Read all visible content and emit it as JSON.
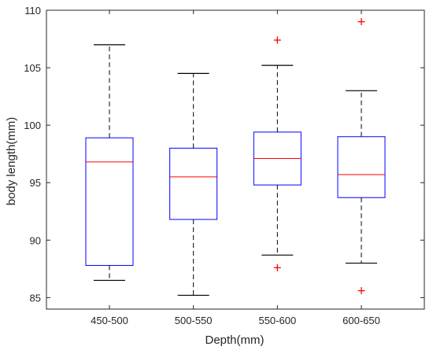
{
  "chart_data": {
    "type": "box",
    "xlabel": "Depth(mm)",
    "ylabel": "body length(mm)",
    "ylim": [
      84,
      110
    ],
    "yticks": [
      85,
      90,
      95,
      100,
      105,
      110
    ],
    "categories": [
      "450-500",
      "500-550",
      "550-600",
      "600-650"
    ],
    "boxes": [
      {
        "category": "450-500",
        "whisker_low": 86.5,
        "q1": 87.8,
        "median": 96.8,
        "q3": 98.9,
        "whisker_high": 107.0,
        "outliers": []
      },
      {
        "category": "500-550",
        "whisker_low": 85.2,
        "q1": 91.8,
        "median": 95.5,
        "q3": 98.0,
        "whisker_high": 104.5,
        "outliers": []
      },
      {
        "category": "550-600",
        "whisker_low": 88.7,
        "q1": 94.8,
        "median": 97.1,
        "q3": 99.4,
        "whisker_high": 105.2,
        "outliers": [
          87.6,
          107.4
        ]
      },
      {
        "category": "600-650",
        "whisker_low": 88.0,
        "q1": 93.7,
        "median": 95.7,
        "q3": 99.0,
        "whisker_high": 103.0,
        "outliers": [
          85.6,
          109.0
        ]
      }
    ],
    "grid": false,
    "colors": {
      "box": "#0000ff",
      "median": "#ff0000",
      "whisker": "#000000",
      "outlier": "#ff0000",
      "axis": "#262626"
    }
  }
}
